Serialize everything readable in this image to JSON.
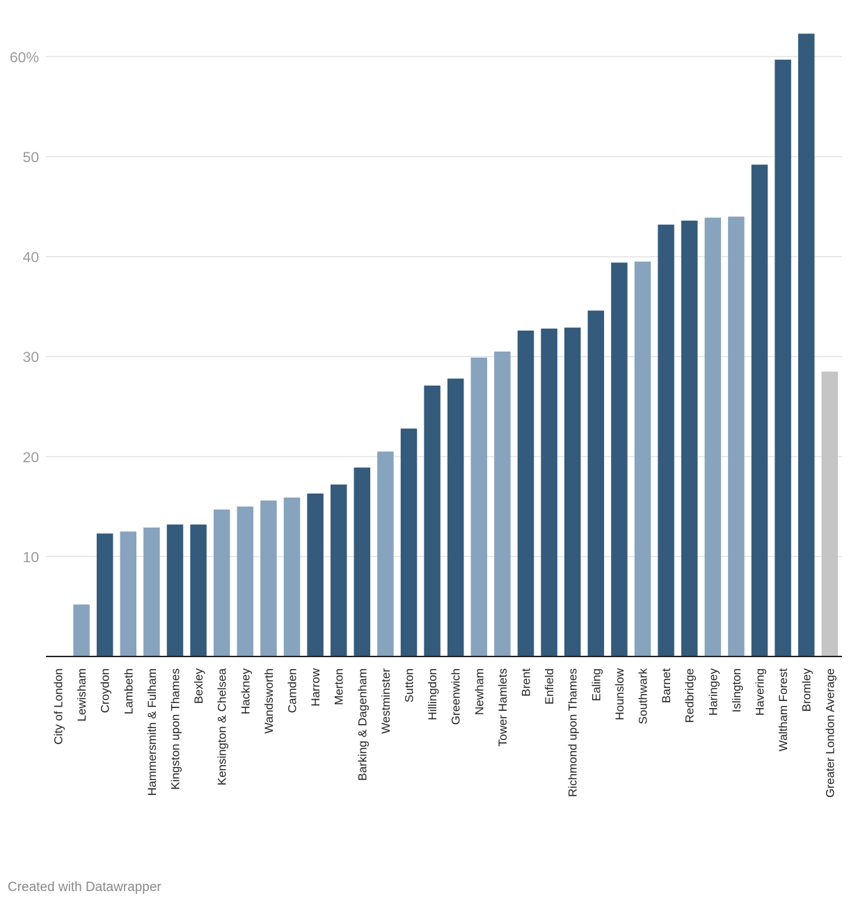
{
  "chart_data": {
    "type": "bar",
    "title": "",
    "xlabel": "",
    "ylabel": "",
    "ylim": [
      0,
      63
    ],
    "yticks": [
      10,
      20,
      30,
      40,
      50,
      60
    ],
    "ytick_labels": [
      "10",
      "20",
      "30",
      "40",
      "50",
      "60%"
    ],
    "grid": true,
    "categories": [
      "City of London",
      "Lewisham",
      "Croydon",
      "Lambeth",
      "Hammersmith & Fulham",
      "Kingston upon Thames",
      "Bexley",
      "Kensington & Chelsea",
      "Hackney",
      "Wandsworth",
      "Camden",
      "Harrow",
      "Merton",
      "Barking & Dagenham",
      "Westminster",
      "Sutton",
      "Hillingdon",
      "Greenwich",
      "Newham",
      "Tower Hamlets",
      "Brent",
      "Enfield",
      "Richmond upon Thames",
      "Ealing",
      "Hounslow",
      "Southwark",
      "Barnet",
      "Redbridge",
      "Haringey",
      "Islington",
      "Havering",
      "Waltham Forest",
      "Bromley",
      "Greater London Average"
    ],
    "values": [
      0,
      5.2,
      12.3,
      12.5,
      12.9,
      13.2,
      13.2,
      14.7,
      15.0,
      15.6,
      15.9,
      16.3,
      17.2,
      18.9,
      20.5,
      22.8,
      27.1,
      27.8,
      29.9,
      30.5,
      32.6,
      32.8,
      32.9,
      34.6,
      39.4,
      39.5,
      43.2,
      43.6,
      43.9,
      44.0,
      49.2,
      59.7,
      62.3,
      28.5
    ],
    "bar_groups": [
      "dark",
      "light",
      "dark",
      "light",
      "light",
      "dark",
      "dark",
      "light",
      "light",
      "light",
      "light",
      "dark",
      "dark",
      "dark",
      "light",
      "dark",
      "dark",
      "dark",
      "light",
      "light",
      "dark",
      "dark",
      "dark",
      "dark",
      "dark",
      "light",
      "dark",
      "dark",
      "light",
      "light",
      "dark",
      "dark",
      "dark",
      "average"
    ],
    "colors": {
      "dark": "#345a7c",
      "light": "#87a3bd",
      "average": "#c5c5c5"
    }
  },
  "footer": {
    "credit": "Created with Datawrapper"
  }
}
